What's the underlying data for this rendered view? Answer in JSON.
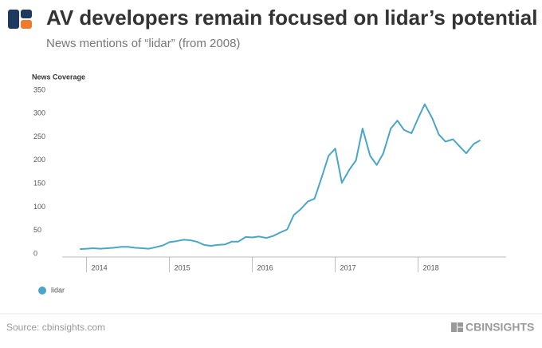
{
  "chart_data": {
    "type": "line",
    "title": "AV developers remain focused on lidar’s potential",
    "subtitle": "News mentions of “lidar” (from 2008)",
    "y_label": "News Coverage",
    "x": [
      2013.92,
      2014.0,
      2014.08,
      2014.17,
      2014.25,
      2014.33,
      2014.42,
      2014.5,
      2014.58,
      2014.67,
      2014.75,
      2014.83,
      2014.92,
      2015.0,
      2015.08,
      2015.17,
      2015.25,
      2015.33,
      2015.42,
      2015.5,
      2015.58,
      2015.67,
      2015.75,
      2015.83,
      2015.92,
      2016.0,
      2016.08,
      2016.17,
      2016.25,
      2016.33,
      2016.42,
      2016.5,
      2016.58,
      2016.67,
      2016.75,
      2016.83,
      2016.92,
      2017.0,
      2017.08,
      2017.17,
      2017.25,
      2017.33,
      2017.42,
      2017.5,
      2017.58,
      2017.67,
      2017.75,
      2017.83,
      2017.92,
      2018.0,
      2018.08,
      2018.17,
      2018.25,
      2018.33,
      2018.42,
      2018.5,
      2018.58,
      2018.67,
      2018.75
    ],
    "series": [
      {
        "name": "lidar",
        "color": "#4aa6c6",
        "values": [
          10,
          11,
          12,
          11,
          12,
          13,
          15,
          15,
          13,
          12,
          11,
          14,
          18,
          25,
          27,
          30,
          29,
          26,
          19,
          17,
          19,
          20,
          26,
          26,
          36,
          35,
          37,
          34,
          38,
          45,
          52,
          83,
          95,
          112,
          118,
          160,
          210,
          225,
          152,
          180,
          200,
          268,
          210,
          190,
          215,
          268,
          285,
          265,
          258,
          290,
          320,
          290,
          255,
          240,
          245,
          230,
          215,
          235,
          243
        ]
      }
    ],
    "xlim": [
      2013.6,
      2019.1
    ],
    "xticks": [
      2014,
      2015,
      2016,
      2017,
      2018
    ],
    "ylim": [
      0,
      350
    ],
    "yticks": [
      0,
      50,
      100,
      150,
      200,
      250,
      300,
      350
    ],
    "grid": false,
    "legend": "bottom-left"
  },
  "footer": {
    "source": "Source: cbinsights.com",
    "brand": "CBINSIGHTS"
  }
}
